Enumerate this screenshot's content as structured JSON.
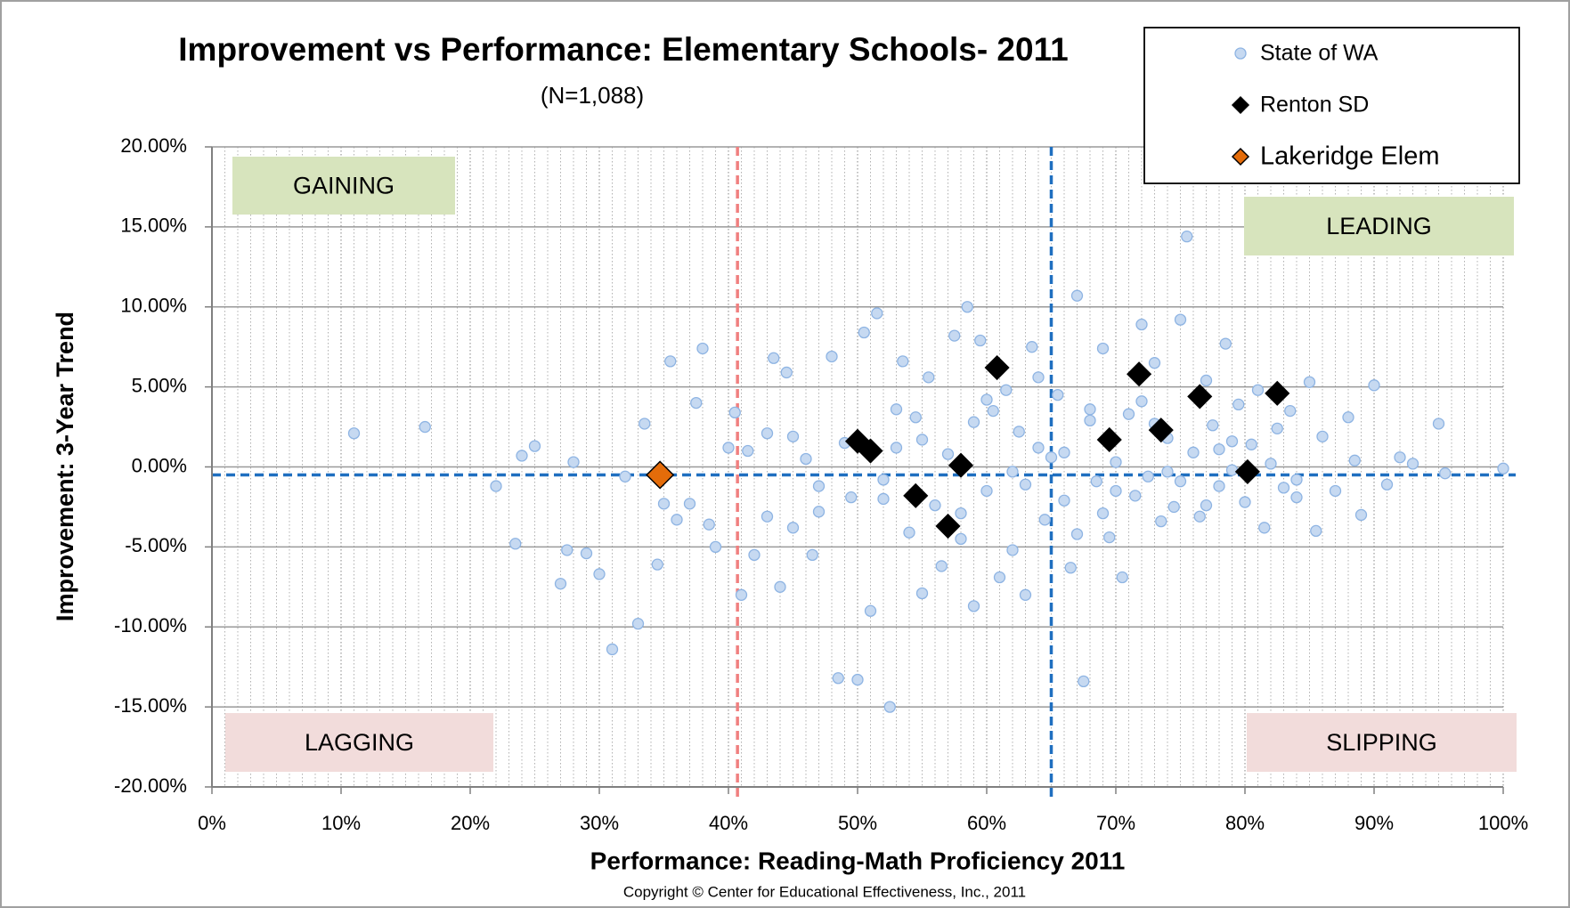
{
  "chart_data": {
    "type": "scatter",
    "title": "Improvement vs Performance:  Elementary Schools- 2011",
    "subtitle": "(N=1,088)",
    "x_label": "Performance: Reading-Math Proficiency 2011",
    "y_label": "Improvement: 3-Year Trend",
    "footnote": "Copyright © Center for Educational Effectiveness, Inc., 2011",
    "xlim": [
      0,
      100
    ],
    "ylim": [
      -20,
      20
    ],
    "xticks": [
      {
        "value": 0,
        "label": "0%"
      },
      {
        "value": 10,
        "label": "10%"
      },
      {
        "value": 20,
        "label": "20%"
      },
      {
        "value": 30,
        "label": "30%"
      },
      {
        "value": 40,
        "label": "40%"
      },
      {
        "value": 50,
        "label": "50%"
      },
      {
        "value": 60,
        "label": "60%"
      },
      {
        "value": 70,
        "label": "70%"
      },
      {
        "value": 80,
        "label": "80%"
      },
      {
        "value": 90,
        "label": "90%"
      },
      {
        "value": 100,
        "label": "100%"
      }
    ],
    "yticks": [
      {
        "value": 20,
        "label": "20.00%"
      },
      {
        "value": 15,
        "label": "15.00%"
      },
      {
        "value": 10,
        "label": "10.00%"
      },
      {
        "value": 5,
        "label": "5.00%"
      },
      {
        "value": 0,
        "label": "0.00%"
      },
      {
        "value": -5,
        "label": "-5.00%"
      },
      {
        "value": -10,
        "label": "-10.00%"
      },
      {
        "value": -15,
        "label": "-15.00%"
      },
      {
        "value": -20,
        "label": "-20.00%"
      }
    ],
    "grid": true,
    "legend_position": "top-right",
    "quadrant_labels": [
      "GAINING",
      "LEADING",
      "LAGGING",
      "SLIPPING"
    ],
    "reference_lines": [
      {
        "axis": "x",
        "value": 40.7,
        "color": "#f08080"
      },
      {
        "axis": "x",
        "value": 65,
        "color": "#1f6fc0"
      },
      {
        "axis": "y",
        "value": -0.5,
        "color": "#1f6fc0"
      }
    ],
    "series": [
      {
        "name": "State of WA",
        "color": "#c6d9f1",
        "marker": "circle",
        "x": [
          11,
          16.5,
          22,
          23.5,
          24,
          25,
          27,
          27.5,
          28,
          29,
          30,
          31,
          32,
          33,
          33.5,
          34.5,
          35,
          35.5,
          36,
          37,
          37.5,
          38,
          38.5,
          39,
          40,
          40.5,
          41,
          41.5,
          42,
          43,
          43.5,
          44,
          44.5,
          45,
          46,
          46.5,
          47,
          48,
          48.5,
          49,
          49.5,
          50,
          50.5,
          51,
          51.5,
          52,
          52.5,
          53,
          53.5,
          54,
          54.5,
          55,
          55.5,
          56,
          56.5,
          57,
          57.5,
          58,
          58.5,
          59,
          59.5,
          60,
          60.5,
          61,
          61.5,
          62,
          62.5,
          63,
          63.5,
          64,
          64.5,
          65,
          65.5,
          66,
          66.5,
          67,
          67.5,
          68,
          68.5,
          69,
          69.5,
          70,
          70.5,
          71,
          71.5,
          72,
          72.5,
          73,
          73.5,
          74,
          74.5,
          75,
          75.5,
          76,
          76.5,
          77,
          77.5,
          78,
          78.5,
          79,
          79.5,
          80,
          80.5,
          81,
          81.5,
          82,
          82.5,
          83,
          83.5,
          84,
          85,
          85.5,
          86,
          87,
          88,
          88.5,
          89,
          90,
          91,
          92,
          93,
          95,
          95.5,
          100,
          52,
          55,
          58,
          60,
          63,
          66,
          68,
          70,
          73,
          75,
          78,
          47,
          43,
          45,
          57,
          62,
          67,
          72,
          77,
          53,
          59,
          64,
          69,
          74,
          79,
          84
        ],
        "values": [
          2.1,
          2.5,
          -1.2,
          -4.8,
          0.7,
          1.3,
          -7.3,
          -5.2,
          0.3,
          -5.4,
          -6.7,
          -11.4,
          -0.6,
          -9.8,
          2.7,
          -6.1,
          -2.3,
          6.6,
          -3.3,
          -2.3,
          4,
          7.4,
          -3.6,
          -5,
          1.2,
          3.4,
          -8,
          1,
          -5.5,
          2.1,
          6.8,
          -7.5,
          5.9,
          -3.8,
          0.5,
          -5.5,
          -2.8,
          6.9,
          -13.2,
          1.5,
          -1.9,
          -13.3,
          8.4,
          -9,
          9.6,
          -2,
          -15,
          3.6,
          6.6,
          -4.1,
          3.1,
          -7.9,
          5.6,
          -2.4,
          -6.2,
          0.8,
          8.2,
          -4.5,
          10,
          -8.7,
          7.9,
          -1.5,
          3.5,
          -6.9,
          4.8,
          -0.3,
          2.2,
          -8,
          7.5,
          1.2,
          -3.3,
          0.6,
          4.5,
          -2.1,
          -6.3,
          10.7,
          -13.4,
          2.9,
          -0.9,
          7.4,
          -4.4,
          0.3,
          -6.9,
          3.3,
          -1.8,
          8.9,
          -0.6,
          6.5,
          -3.4,
          1.8,
          -2.5,
          9.2,
          14.4,
          0.9,
          -3.1,
          5.4,
          2.6,
          -1.2,
          7.7,
          -0.2,
          3.9,
          -2.2,
          1.4,
          4.8,
          -3.8,
          0.2,
          2.4,
          -1.3,
          3.5,
          -0.8,
          5.3,
          -4,
          1.9,
          -1.5,
          3.1,
          0.4,
          -3,
          5.1,
          -1.1,
          0.6,
          0.2,
          2.7,
          -0.4,
          -0.1,
          -0.8,
          1.7,
          -2.9,
          4.2,
          -1.1,
          0.9,
          3.6,
          -1.5,
          2.7,
          -0.9,
          1.1,
          -1.2,
          -3.1,
          1.9,
          -3.6,
          -5.2,
          -4.2,
          4.1,
          -2.4,
          1.2,
          2.8,
          5.6,
          -2.9,
          -0.3,
          1.6,
          -1.9
        ]
      },
      {
        "name": "Renton SD",
        "color": "#000000",
        "marker": "diamond",
        "x": [
          50,
          51,
          54.5,
          57,
          58,
          60.8,
          69.5,
          71.8,
          73.5,
          76.5,
          80.2,
          82.5
        ],
        "values": [
          1.6,
          1,
          -1.8,
          -3.7,
          0.1,
          6.2,
          1.7,
          5.8,
          2.3,
          4.4,
          -0.3,
          4.6
        ]
      },
      {
        "name": "Lakeridge Elem",
        "color": "#e46c0a",
        "marker": "diamond",
        "x": [
          34.7
        ],
        "values": [
          -0.5
        ]
      }
    ]
  }
}
